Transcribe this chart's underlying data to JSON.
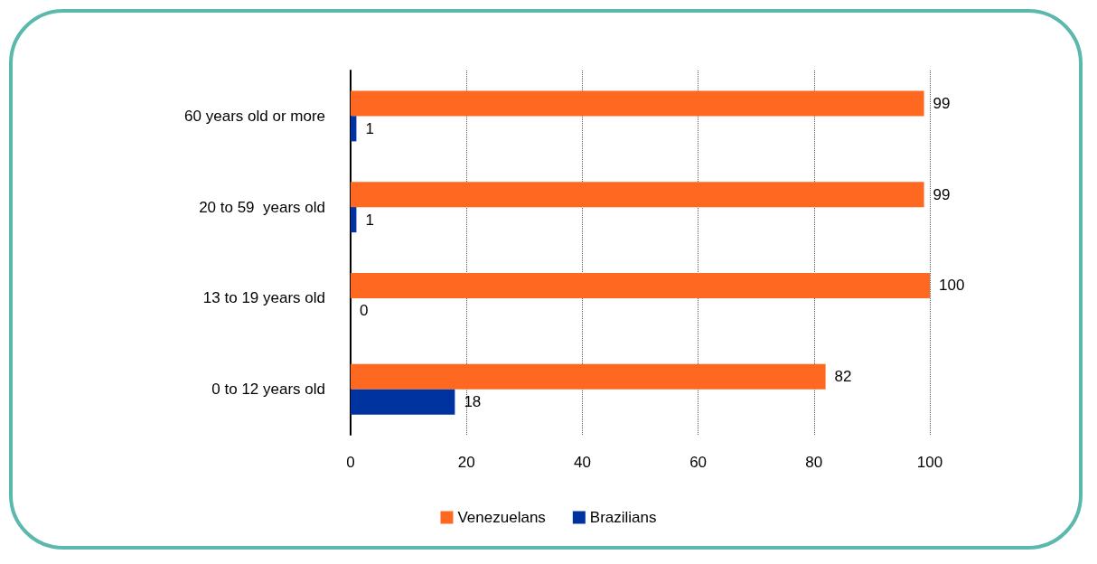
{
  "chart_data": {
    "type": "bar",
    "orientation": "horizontal",
    "categories": [
      "60 years old or more",
      "20 to 59  years old",
      "13 to 19 years old",
      "0 to 12 years old"
    ],
    "series": [
      {
        "name": "Venezuelans",
        "color": "#ff6820",
        "values": [
          99,
          99,
          100,
          82
        ]
      },
      {
        "name": "Brazilians",
        "color": "#0033a0",
        "values": [
          1,
          1,
          0,
          18
        ]
      }
    ],
    "xlim": [
      0,
      100
    ],
    "xticks": [
      0,
      20,
      40,
      60,
      80,
      100
    ],
    "grid": "x",
    "legend": "bottom",
    "data_labels": true
  }
}
